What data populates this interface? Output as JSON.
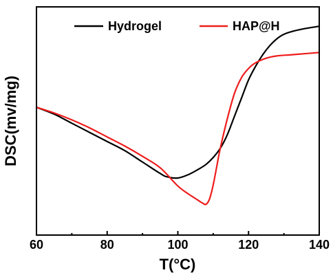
{
  "chart_data": {
    "type": "line",
    "title": "",
    "xlabel": "T(°C)",
    "ylabel": "DSC(mv/mg)",
    "xlim": [
      60,
      140
    ],
    "ylim": [
      0,
      1
    ],
    "x_ticks": [
      60,
      80,
      100,
      120,
      140
    ],
    "x_tick_labels": [
      "60",
      "80",
      "100",
      "120",
      "140"
    ],
    "y_ticks_labeled": false,
    "grid": false,
    "legend_position": "top",
    "series": [
      {
        "name": "Hydrogel",
        "color": "#000000",
        "x": [
          60,
          65,
          70,
          75,
          80,
          85,
          90,
          95,
          97,
          100,
          103,
          106,
          108,
          110,
          112,
          114,
          116,
          118,
          120,
          122,
          124,
          126,
          128,
          130,
          133,
          136,
          140
        ],
        "y": [
          0.56,
          0.53,
          0.49,
          0.45,
          0.41,
          0.37,
          0.32,
          0.27,
          0.255,
          0.25,
          0.265,
          0.29,
          0.31,
          0.34,
          0.38,
          0.44,
          0.52,
          0.6,
          0.68,
          0.74,
          0.79,
          0.83,
          0.86,
          0.88,
          0.895,
          0.905,
          0.915
        ]
      },
      {
        "name": "HAP@H",
        "color": "#ee1c1c",
        "x": [
          60,
          65,
          70,
          75,
          80,
          85,
          90,
          95,
          100,
          103,
          105,
          107,
          108,
          109,
          110,
          111,
          112,
          114,
          116,
          118,
          120,
          122,
          125,
          128,
          132,
          136,
          140
        ],
        "y": [
          0.56,
          0.535,
          0.505,
          0.47,
          0.43,
          0.39,
          0.345,
          0.295,
          0.215,
          0.18,
          0.16,
          0.14,
          0.135,
          0.16,
          0.22,
          0.3,
          0.38,
          0.51,
          0.62,
          0.69,
          0.73,
          0.755,
          0.775,
          0.785,
          0.79,
          0.795,
          0.8
        ]
      }
    ]
  }
}
